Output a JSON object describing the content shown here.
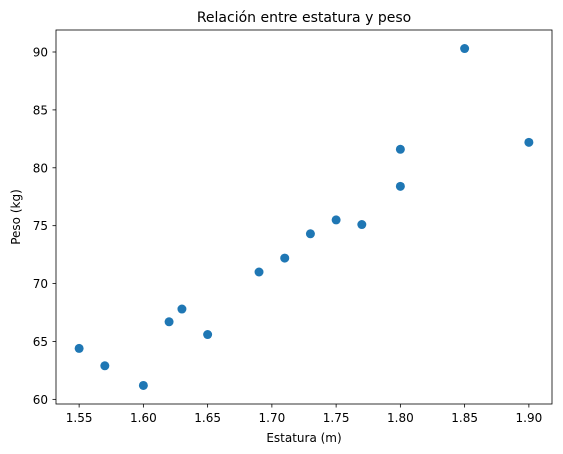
{
  "chart_data": {
    "type": "scatter",
    "title": "Relación entre estatura y peso",
    "xlabel": "Estatura (m)",
    "ylabel": "Peso (kg)",
    "xlim": [
      1.532,
      1.918
    ],
    "ylim": [
      59.6,
      91.9
    ],
    "xticks": [
      "1.55",
      "1.60",
      "1.65",
      "1.70",
      "1.75",
      "1.80",
      "1.85",
      "1.90"
    ],
    "yticks": [
      "60",
      "65",
      "70",
      "75",
      "80",
      "85",
      "90"
    ],
    "grid": false,
    "marker_color": "#1f77b4",
    "series": [
      {
        "x": [
          1.55,
          1.57,
          1.6,
          1.62,
          1.63,
          1.65,
          1.69,
          1.71,
          1.73,
          1.75,
          1.77,
          1.8,
          1.8,
          1.85,
          1.9
        ],
        "y": [
          64.4,
          62.9,
          61.2,
          66.7,
          67.8,
          65.6,
          71.0,
          72.2,
          74.3,
          75.5,
          75.1,
          78.4,
          81.6,
          90.3,
          82.2
        ]
      }
    ]
  }
}
